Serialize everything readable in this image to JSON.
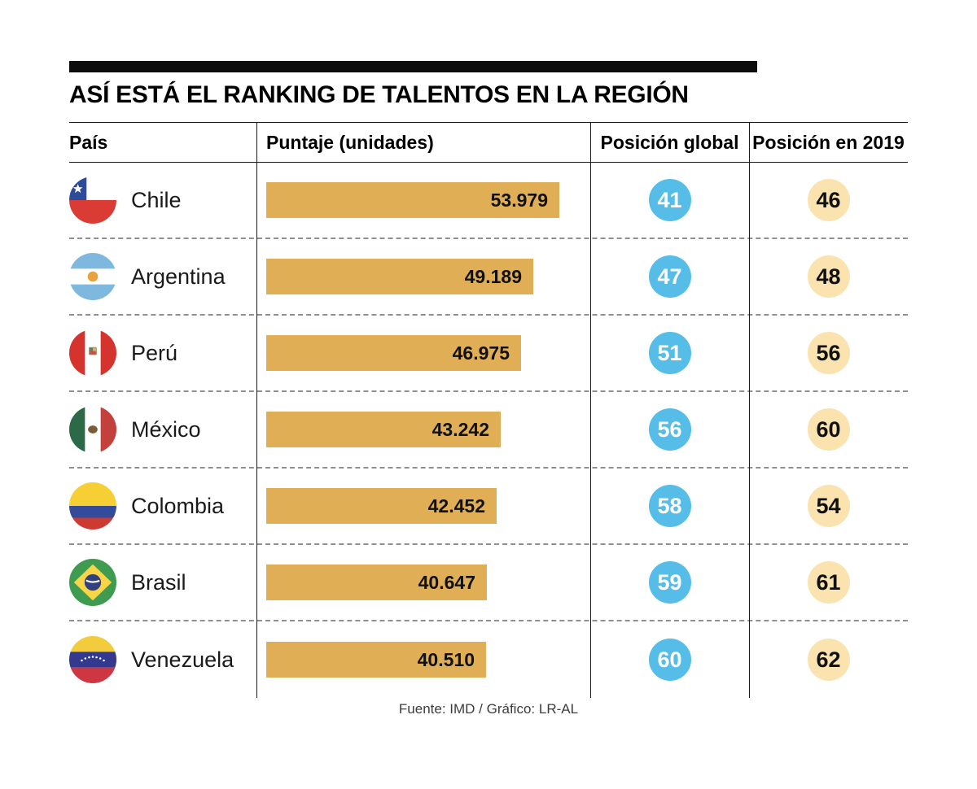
{
  "title": "ASÍ ESTÁ EL RANKING DE TALENTOS EN LA REGIÓN",
  "columns": {
    "country": "País",
    "score": "Puntaje (unidades)",
    "global": "Posición global",
    "pos2019": "Posición en 2019"
  },
  "rows": [
    {
      "country": "Chile",
      "flag": "chile-flag-icon",
      "score_label": "53.979",
      "global": "41",
      "pos2019": "46"
    },
    {
      "country": "Argentina",
      "flag": "argentina-flag-icon",
      "score_label": "49.189",
      "global": "47",
      "pos2019": "48"
    },
    {
      "country": "Perú",
      "flag": "peru-flag-icon",
      "score_label": "46.975",
      "global": "51",
      "pos2019": "56"
    },
    {
      "country": "México",
      "flag": "mexico-flag-icon",
      "score_label": "43.242",
      "global": "56",
      "pos2019": "60"
    },
    {
      "country": "Colombia",
      "flag": "colombia-flag-icon",
      "score_label": "42.452",
      "global": "58",
      "pos2019": "54"
    },
    {
      "country": "Brasil",
      "flag": "brasil-flag-icon",
      "score_label": "40.647",
      "global": "59",
      "pos2019": "61"
    },
    {
      "country": "Venezuela",
      "flag": "venezuela-flag-icon",
      "score_label": "40.510",
      "global": "60",
      "pos2019": "62"
    }
  ],
  "footer": {
    "source": "Fuente: IMD / Gráfico: LR-AL"
  },
  "colors": {
    "bar": "#E0AE55",
    "global_circle": "#55BDE7",
    "pos2019_circle": "#FBE3B0",
    "rule": "#0D0D0D"
  },
  "chart_data": {
    "type": "bar",
    "orientation": "horizontal",
    "title": "ASÍ ESTÁ EL RANKING DE TALENTOS EN LA REGIÓN",
    "categories": [
      "Chile",
      "Argentina",
      "Perú",
      "México",
      "Colombia",
      "Brasil",
      "Venezuela"
    ],
    "series": [
      {
        "name": "Puntaje (unidades)",
        "values": [
          53.979,
          49.189,
          46.975,
          43.242,
          42.452,
          40.647,
          40.51
        ]
      },
      {
        "name": "Posición global",
        "values": [
          41,
          47,
          51,
          56,
          58,
          59,
          60
        ]
      },
      {
        "name": "Posición en 2019",
        "values": [
          46,
          48,
          56,
          60,
          54,
          61,
          62
        ]
      }
    ],
    "xlim": [
      0,
      60
    ],
    "grid": false,
    "legend_position": "none",
    "source": "Fuente: IMD / Gráfico: LR-AL"
  }
}
